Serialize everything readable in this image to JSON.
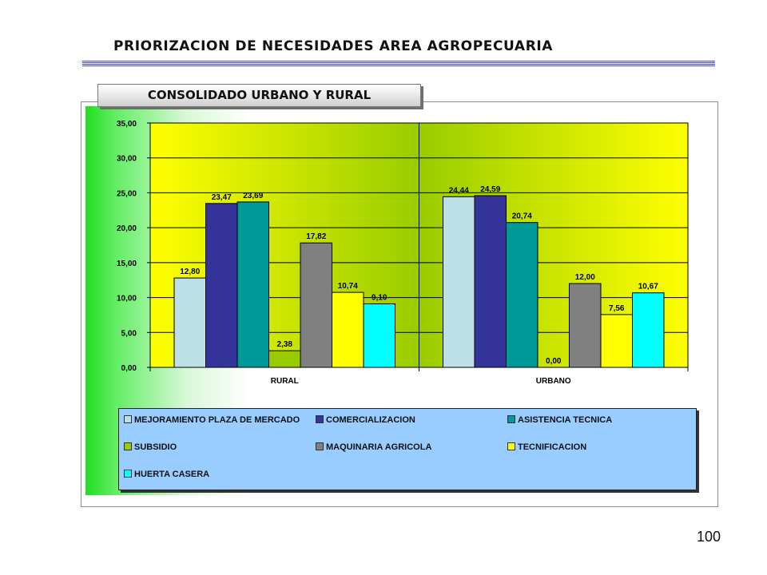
{
  "title": "PRIORIZACION DE NECESIDADES AREA  AGROPECUARIA",
  "subtitle": "CONSOLIDADO URBANO Y RURAL",
  "page_number": "100",
  "colors": {
    "plot_yellow": "#ffff00",
    "plot_green": "#99cc00",
    "legend_bg": "#99ccff"
  },
  "chart_data": {
    "type": "bar",
    "title": "",
    "xlabel": "",
    "ylabel": "",
    "ylim": [
      0,
      35
    ],
    "yticks": [
      "0,00",
      "5,00",
      "10,00",
      "15,00",
      "20,00",
      "25,00",
      "30,00",
      "35,00"
    ],
    "ytick_values": [
      0,
      5,
      10,
      15,
      20,
      25,
      30,
      35
    ],
    "grid": true,
    "legend_position": "bottom",
    "categories": [
      "RURAL",
      "URBANO"
    ],
    "series": [
      {
        "name": "MEJORAMIENTO PLAZA DE MERCADO",
        "color": "#bde0e6",
        "values": [
          12.8,
          24.44
        ],
        "labels": [
          "12,80",
          "24,44"
        ]
      },
      {
        "name": "COMERCIALIZACION",
        "color": "#333399",
        "values": [
          23.47,
          24.59
        ],
        "labels": [
          "23,47",
          "24,59"
        ]
      },
      {
        "name": "ASISTENCIA TECNICA",
        "color": "#009999",
        "values": [
          23.69,
          20.74
        ],
        "labels": [
          "23,69",
          "20,74"
        ]
      },
      {
        "name": "SUBSIDIO",
        "color": "#99cc00",
        "values": [
          2.38,
          0.0
        ],
        "labels": [
          "2,38",
          "0,00"
        ]
      },
      {
        "name": "MAQUINARIA AGRICOLA",
        "color": "#808080",
        "values": [
          17.82,
          12.0
        ],
        "labels": [
          "17,82",
          "12,00"
        ]
      },
      {
        "name": "TECNIFICACION",
        "color": "#ffff00",
        "values": [
          10.74,
          7.56
        ],
        "labels": [
          "10,74",
          "7,56"
        ]
      },
      {
        "name": "HUERTA CASERA",
        "color": "#00ffff",
        "values": [
          9.1,
          10.67
        ],
        "labels": [
          "9,10",
          "10,67"
        ]
      }
    ]
  }
}
